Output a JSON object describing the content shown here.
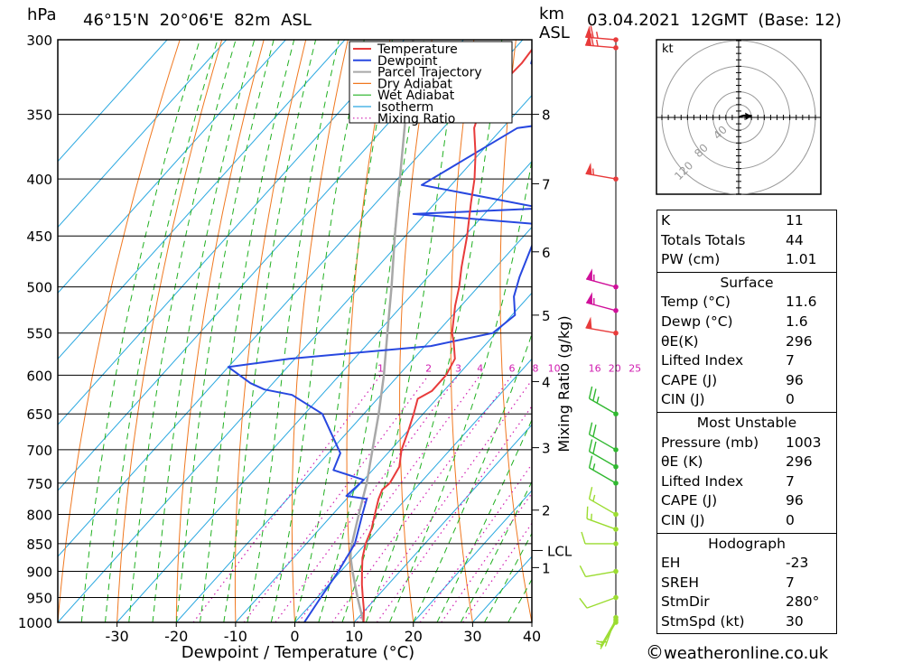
{
  "header": {
    "location": "46°15'N  20°06'E  82m  ASL",
    "datetime": "03.04.2021  12GMT  (Base: 12)",
    "pressure_unit": "hPa",
    "height_unit_1": "km",
    "height_unit_2": "ASL"
  },
  "footer": {
    "copyright_symbol": "©",
    "site": "weatheronline.co.uk"
  },
  "table": {
    "indices": [
      {
        "label": "K",
        "value": "11"
      },
      {
        "label": "Totals Totals",
        "value": "44"
      },
      {
        "label": "PW (cm)",
        "value": "1.01"
      }
    ],
    "surface": {
      "title": "Surface",
      "rows": [
        {
          "label": "Temp (°C)",
          "value": "11.6"
        },
        {
          "label": "Dewp (°C)",
          "value": "1.6"
        },
        {
          "label": "θE(K)",
          "value": "296"
        },
        {
          "label": "Lifted Index",
          "value": "7"
        },
        {
          "label": "CAPE (J)",
          "value": "96"
        },
        {
          "label": "CIN (J)",
          "value": "0"
        }
      ]
    },
    "most_unstable": {
      "title": "Most Unstable",
      "rows": [
        {
          "label": "Pressure (mb)",
          "value": "1003"
        },
        {
          "label": "θE (K)",
          "value": "296"
        },
        {
          "label": "Lifted Index",
          "value": "7"
        },
        {
          "label": "CAPE (J)",
          "value": "96"
        },
        {
          "label": "CIN (J)",
          "value": "0"
        }
      ]
    },
    "hodograph": {
      "title": "Hodograph",
      "rows": [
        {
          "label": "EH",
          "value": "-23"
        },
        {
          "label": "SREH",
          "value": "7"
        },
        {
          "label": "StmDir",
          "value": "280°"
        },
        {
          "label": "StmSpd (kt)",
          "value": "30"
        }
      ]
    }
  },
  "hodograph_plot": {
    "unit_label": "kt",
    "ring_labels": [
      "40",
      "80",
      "120"
    ]
  },
  "chart_data": {
    "type": "line",
    "title": "46°15'N  20°06'E  82m  ASL",
    "xlabel": "Dewpoint / Temperature (°C)",
    "ylabel": "hPa",
    "right_axis_label": "Mixing Ratio (g/kg)",
    "xlim": [
      -40,
      40
    ],
    "ylim": [
      1000,
      300
    ],
    "x_ticks": [
      -30,
      -20,
      -10,
      0,
      10,
      20,
      30,
      40
    ],
    "pressure_levels": [
      300,
      350,
      400,
      450,
      500,
      550,
      600,
      650,
      700,
      750,
      800,
      850,
      900,
      950,
      1000
    ],
    "height_ticks_km": [
      {
        "km": 8,
        "p": 350
      },
      {
        "km": 7,
        "p": 404
      },
      {
        "km": 6,
        "p": 465
      },
      {
        "km": 5,
        "p": 530
      },
      {
        "km": 4,
        "p": 608
      },
      {
        "km": 3,
        "p": 697
      },
      {
        "km": 2,
        "p": 793
      },
      {
        "km": 1,
        "p": 893
      }
    ],
    "lcl": {
      "label": "LCL",
      "p": 862
    },
    "mixing_ratio_labels": [
      "1",
      "2",
      "3",
      "4",
      "6",
      "8",
      "10",
      "16",
      "20",
      "25"
    ],
    "mixing_ratios_gkg": [
      1,
      2,
      3,
      4,
      6,
      8,
      10,
      16,
      20,
      25
    ],
    "legend": [
      "Temperature",
      "Dewpoint",
      "Parcel Trajectory",
      "Dry Adiabat",
      "Wet Adiabat",
      "Isotherm",
      "Mixing Ratio"
    ],
    "colors": {
      "temperature": "#e83b3b",
      "dewpoint": "#2848e0",
      "parcel": "#a8a8a8",
      "dry_adiabat": "#f07820",
      "wet_adiabat": "#20b020",
      "isotherm": "#2aa8e0",
      "mixing_ratio": "#d01cb0",
      "wind_upper": "#e83b3b",
      "wind_mid": "#d0109a",
      "wind_low": "#30b830",
      "wind_low_light": "#9bdc30"
    },
    "series": [
      {
        "name": "Temperature",
        "points": [
          [
            1000,
            11.6
          ],
          [
            975,
            9.8
          ],
          [
            950,
            7.7
          ],
          [
            925,
            5.6
          ],
          [
            900,
            3.6
          ],
          [
            875,
            1.6
          ],
          [
            850,
            0.0
          ],
          [
            825,
            -1.2
          ],
          [
            800,
            -2.9
          ],
          [
            775,
            -4.6
          ],
          [
            760,
            -5.4
          ],
          [
            750,
            -5.1
          ],
          [
            725,
            -6.0
          ],
          [
            700,
            -8.2
          ],
          [
            675,
            -9.8
          ],
          [
            650,
            -11.6
          ],
          [
            630,
            -13.2
          ],
          [
            620,
            -12.0
          ],
          [
            600,
            -12.0
          ],
          [
            580,
            -13.0
          ],
          [
            560,
            -15.8
          ],
          [
            550,
            -17.4
          ],
          [
            520,
            -21.0
          ],
          [
            500,
            -23.2
          ],
          [
            480,
            -25.8
          ],
          [
            450,
            -29.6
          ],
          [
            420,
            -34.0
          ],
          [
            400,
            -37.0
          ],
          [
            380,
            -40.6
          ],
          [
            360,
            -44.8
          ],
          [
            345,
            -46.8
          ],
          [
            335,
            -45.6
          ],
          [
            325,
            -46.8
          ],
          [
            315,
            -46.6
          ],
          [
            300,
            -47.2
          ]
        ]
      },
      {
        "name": "Dewpoint",
        "points": [
          [
            1000,
            1.6
          ],
          [
            950,
            0.6
          ],
          [
            900,
            -0.4
          ],
          [
            850,
            -1.8
          ],
          [
            800,
            -5.0
          ],
          [
            775,
            -6.6
          ],
          [
            770,
            -10.5
          ],
          [
            745,
            -10.0
          ],
          [
            730,
            -16.6
          ],
          [
            705,
            -18.0
          ],
          [
            650,
            -27.0
          ],
          [
            625,
            -35.0
          ],
          [
            618,
            -40.5
          ],
          [
            610,
            -43.8
          ],
          [
            590,
            -50.0
          ],
          [
            580,
            -41.0
          ],
          [
            565,
            -19.0
          ],
          [
            550,
            -10.5
          ],
          [
            530,
            -9.5
          ],
          [
            510,
            -12.5
          ],
          [
            490,
            -14.5
          ],
          [
            450,
            -18.0
          ],
          [
            440,
            -17.5
          ],
          [
            430,
            -42.0
          ],
          [
            425,
            -21.0
          ],
          [
            405,
            -45.0
          ],
          [
            360,
            -37.5
          ],
          [
            355,
            -30.0
          ],
          [
            350,
            -32.0
          ],
          [
            345,
            -35.5
          ],
          [
            335,
            -32.5
          ],
          [
            315,
            -45.0
          ],
          [
            300,
            -47.5
          ]
        ]
      },
      {
        "name": "Parcel Trajectory",
        "points": [
          [
            1000,
            11.6
          ],
          [
            950,
            6.8
          ],
          [
            900,
            2.0
          ],
          [
            875,
            -0.4
          ],
          [
            862,
            -1.5
          ],
          [
            850,
            -2.3
          ],
          [
            800,
            -5.6
          ],
          [
            750,
            -9.0
          ],
          [
            700,
            -13.1
          ],
          [
            650,
            -17.5
          ],
          [
            600,
            -22.5
          ],
          [
            550,
            -28.3
          ],
          [
            500,
            -34.6
          ],
          [
            450,
            -41.8
          ],
          [
            400,
            -49.6
          ],
          [
            350,
            -58.4
          ],
          [
            300,
            -68.5
          ]
        ]
      }
    ],
    "winds": [
      {
        "p": 1000,
        "speed_kt": 5,
        "dir_deg": 210
      },
      {
        "p": 995,
        "speed_kt": 5,
        "dir_deg": 210
      },
      {
        "p": 990,
        "speed_kt": 5,
        "dir_deg": 200
      },
      {
        "p": 950,
        "speed_kt": 10,
        "dir_deg": 250
      },
      {
        "p": 900,
        "speed_kt": 10,
        "dir_deg": 260
      },
      {
        "p": 850,
        "speed_kt": 10,
        "dir_deg": 270
      },
      {
        "p": 825,
        "speed_kt": 15,
        "dir_deg": 290
      },
      {
        "p": 800,
        "speed_kt": 15,
        "dir_deg": 300
      },
      {
        "p": 750,
        "speed_kt": 15,
        "dir_deg": 300
      },
      {
        "p": 725,
        "speed_kt": 20,
        "dir_deg": 300
      },
      {
        "p": 700,
        "speed_kt": 20,
        "dir_deg": 300
      },
      {
        "p": 650,
        "speed_kt": 25,
        "dir_deg": 300
      },
      {
        "p": 550,
        "speed_kt": 50,
        "dir_deg": 280
      },
      {
        "p": 525,
        "speed_kt": 55,
        "dir_deg": 285
      },
      {
        "p": 500,
        "speed_kt": 55,
        "dir_deg": 285
      },
      {
        "p": 400,
        "speed_kt": 55,
        "dir_deg": 280
      },
      {
        "p": 305,
        "speed_kt": 65,
        "dir_deg": 275
      },
      {
        "p": 300,
        "speed_kt": 65,
        "dir_deg": 275
      }
    ],
    "hodograph_points_kt": [
      [
        0,
        0
      ],
      [
        4,
        2
      ],
      [
        8,
        3
      ],
      [
        13,
        3
      ],
      [
        17,
        3
      ],
      [
        20,
        2
      ]
    ],
    "grid": true
  }
}
